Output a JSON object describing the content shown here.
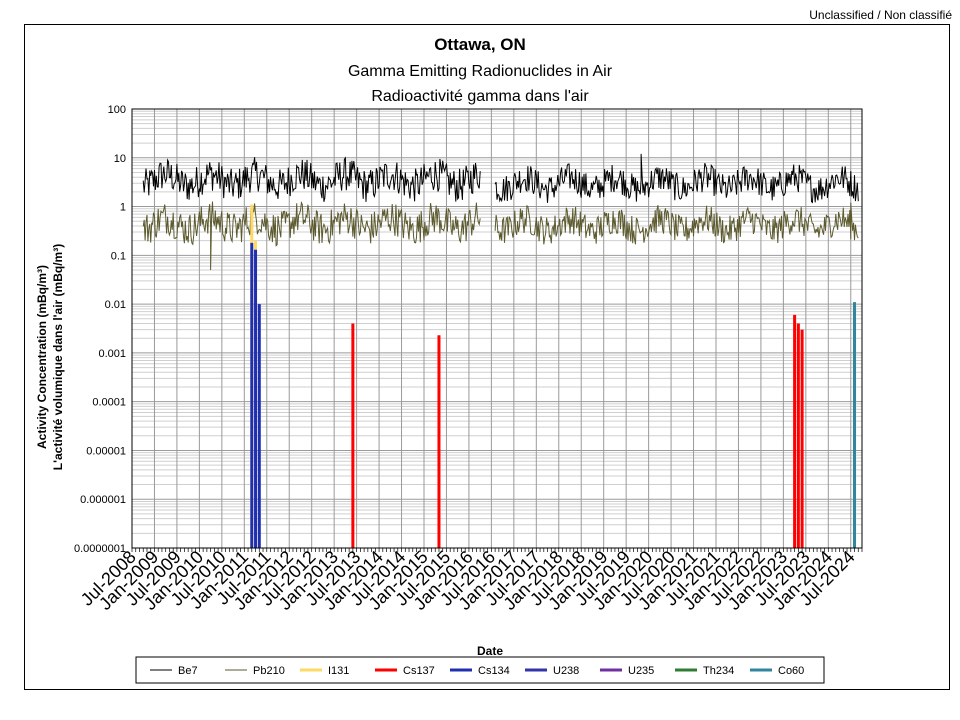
{
  "classification": "Unclassified / Non classifié",
  "chart_data": {
    "type": "line",
    "title": "Ottawa, ON",
    "subtitle_en": "Gamma Emitting Radionuclides in Air",
    "subtitle_fr": "Radioactivité gamma dans l'air",
    "xlabel": "Date",
    "ylabel_en": "Activity Concentration  (mBq/m³)",
    "ylabel_fr": "L'activité volumique dans l'air (mBq/m³)",
    "y_scale": "log",
    "ylim": [
      1e-07,
      100
    ],
    "y_ticks": [
      "100",
      "10",
      "1",
      "0.1",
      "0.01",
      "0.001",
      "0.0001",
      "0.00001",
      "0.000001",
      "0.0000001"
    ],
    "x_range": [
      "2008-07",
      "2024-10"
    ],
    "x_tick_labels": [
      "Jul-2008",
      "Jan-2009",
      "Jul-2009",
      "Jan-2010",
      "Jul-2010",
      "Jan-2011",
      "Jul-2011",
      "Jan-2012",
      "Jul-2012",
      "Jan-2013",
      "Jul-2013",
      "Jan-2014",
      "Jul-2014",
      "Jan-2015",
      "Jul-2015",
      "Jan-2016",
      "Jul-2016",
      "Jan-2017",
      "Jul-2017",
      "Jan-2018",
      "Jul-2018",
      "Jan-2019",
      "Jul-2019",
      "Jan-2020",
      "Jul-2020",
      "Jan-2021",
      "Jul-2021",
      "Jan-2022",
      "Jul-2022",
      "Jan-2023",
      "Jul-2023",
      "Jan-2024",
      "Jul-2024"
    ],
    "grid": true,
    "legend_position": "bottom",
    "series": [
      {
        "name": "Be7",
        "color": "#000000",
        "kind": "noisy",
        "segments": [
          {
            "start": "2008-10",
            "end": "2016-04",
            "center": 3.5,
            "spread": 0.35
          },
          {
            "start": "2016-08",
            "end": "2024-09",
            "center": 3.0,
            "spread": 0.3
          }
        ],
        "spikes": [
          {
            "x": "2019-11",
            "y": 12
          }
        ]
      },
      {
        "name": "Pb210",
        "color": "#5c5a2e",
        "kind": "noisy",
        "segments": [
          {
            "start": "2008-10",
            "end": "2016-04",
            "center": 0.45,
            "spread": 0.35
          },
          {
            "start": "2016-08",
            "end": "2024-09",
            "center": 0.42,
            "spread": 0.3
          }
        ],
        "spikes": [
          {
            "x": "2010-04",
            "y": 0.05
          },
          {
            "x": "2024-07",
            "y": 1.2
          }
        ]
      },
      {
        "name": "I131",
        "color": "#ffd966",
        "kind": "event",
        "points": [
          [
            "2011-03",
            1.1
          ],
          [
            "2011-04",
            0.2
          ]
        ]
      },
      {
        "name": "Cs137",
        "color": "#ff0000",
        "kind": "event",
        "points": [
          [
            "2013-06",
            0.004
          ],
          [
            "2015-05",
            0.0023
          ],
          [
            "2023-04",
            0.006
          ],
          [
            "2023-05",
            0.004
          ],
          [
            "2023-06",
            0.003
          ]
        ]
      },
      {
        "name": "Cs134",
        "color": "#1f2fb0",
        "kind": "event",
        "points": [
          [
            "2011-03",
            0.18
          ],
          [
            "2011-04",
            0.13
          ],
          [
            "2011-05",
            0.01
          ]
        ]
      },
      {
        "name": "U238",
        "color": "#3333aa",
        "kind": "none",
        "points": []
      },
      {
        "name": "U235",
        "color": "#7030a0",
        "kind": "none",
        "points": []
      },
      {
        "name": "Th234",
        "color": "#2e7d32",
        "kind": "none",
        "points": []
      },
      {
        "name": "Co60",
        "color": "#31859c",
        "kind": "event",
        "points": [
          [
            "2024-08",
            0.011
          ]
        ]
      }
    ]
  }
}
